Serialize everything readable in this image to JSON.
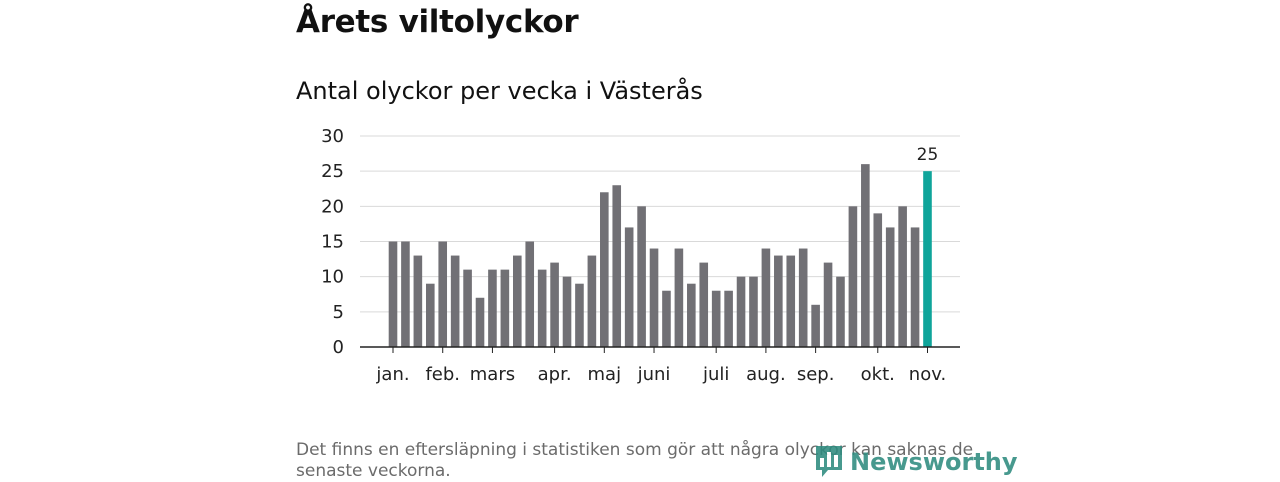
{
  "header": {
    "title": "Årets viltolyckor",
    "subtitle": "Antal olyckor per vecka i Västerås"
  },
  "chart_data": {
    "type": "bar",
    "title": "Antal olyckor per vecka i Västerås",
    "xlabel": "",
    "ylabel": "",
    "ylim": [
      0,
      30
    ],
    "yticks": [
      "0",
      "5",
      "10",
      "15",
      "20",
      "25",
      "30"
    ],
    "grid": true,
    "values": [
      15,
      15,
      13,
      9,
      15,
      13,
      11,
      7,
      11,
      11,
      13,
      15,
      11,
      12,
      10,
      9,
      13,
      22,
      23,
      17,
      20,
      14,
      8,
      14,
      9,
      12,
      8,
      8,
      10,
      10,
      14,
      13,
      13,
      14,
      6,
      12,
      10,
      20,
      26,
      19,
      17,
      20,
      17,
      25
    ],
    "highlight_index": 43,
    "highlight_label": "25",
    "month_labels": [
      {
        "label": "jan.",
        "week_index": 0
      },
      {
        "label": "feb.",
        "week_index": 4
      },
      {
        "label": "mars",
        "week_index": 8
      },
      {
        "label": "apr.",
        "week_index": 13
      },
      {
        "label": "maj",
        "week_index": 17
      },
      {
        "label": "juni",
        "week_index": 21
      },
      {
        "label": "juli",
        "week_index": 26
      },
      {
        "label": "aug.",
        "week_index": 30
      },
      {
        "label": "sep.",
        "week_index": 34
      },
      {
        "label": "okt.",
        "week_index": 39
      },
      {
        "label": "nov.",
        "week_index": 43
      }
    ],
    "colors": {
      "bar": "#717075",
      "highlight": "#0fa49a",
      "grid": "#d9d9d9",
      "axis": "#222222"
    }
  },
  "footer": {
    "note": "Det finns en eftersläpning i statistiken som gör att några olyckor kan saknas de senaste veckorna.",
    "brand": "Newsworthy",
    "brand_color": "#2e8b7f"
  }
}
